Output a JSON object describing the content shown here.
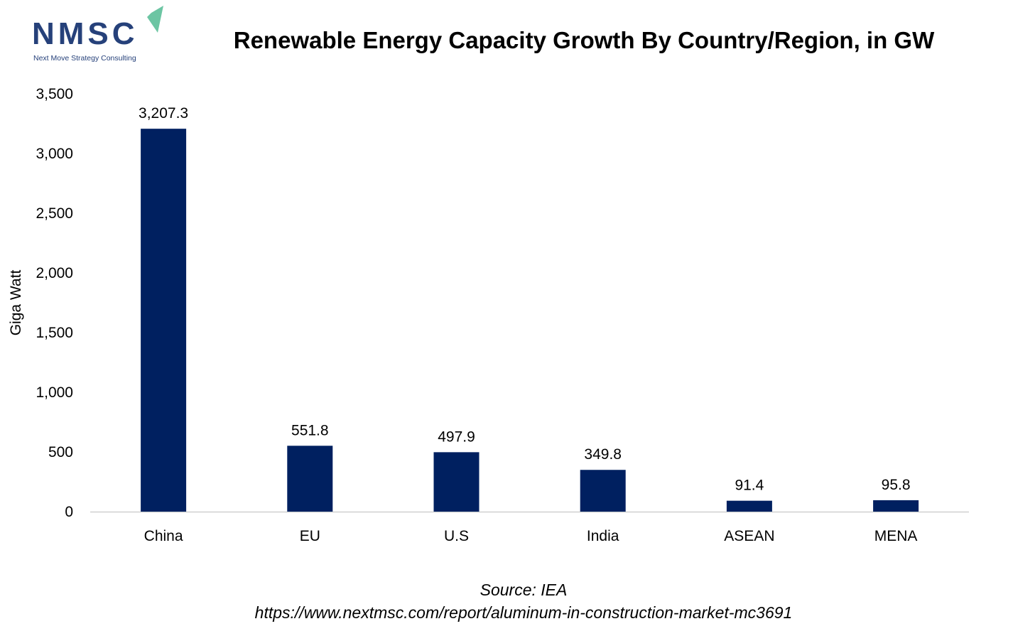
{
  "logo": {
    "text": "NMSC",
    "tagline": "Next Move Strategy Consulting",
    "colors": {
      "letters": "#26417a",
      "arrow": "#6cc5a3"
    }
  },
  "chart_data": {
    "type": "bar",
    "title": "Renewable Energy Capacity Growth By Country/Region, in GW",
    "ylabel": "Giga Watt",
    "xlabel": "",
    "categories": [
      "China",
      "EU",
      "U.S",
      "India",
      "ASEAN",
      "MENA"
    ],
    "values": [
      3207.3,
      551.8,
      497.9,
      349.8,
      91.4,
      95.8
    ],
    "data_labels": [
      "3,207.3",
      "551.8",
      "497.9",
      "349.8",
      "91.4",
      "95.8"
    ],
    "ylim": [
      0,
      3500
    ],
    "yticks": [
      0,
      500,
      1000,
      1500,
      2000,
      2500,
      3000,
      3500
    ],
    "ytick_labels": [
      "0",
      "500",
      "1,000",
      "1,500",
      "2,000",
      "2,500",
      "3,000",
      "3,500"
    ],
    "grid": false,
    "bar_color": "#002060"
  },
  "source": {
    "line1": "Source: IEA",
    "line2": "https://www.nextmsc.com/report/aluminum-in-construction-market-mc3691"
  }
}
